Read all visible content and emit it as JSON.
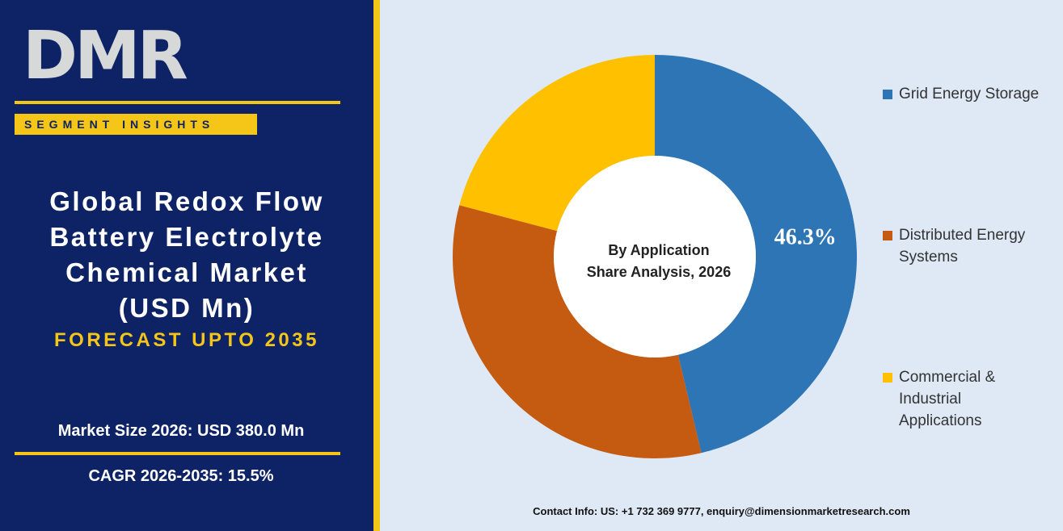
{
  "brand": {
    "logo": "DMR",
    "tag": "SEGMENT INSIGHTS"
  },
  "headline": {
    "title": [
      "Global Redox Flow",
      "Battery Electrolyte",
      "Chemical Market",
      "(USD Mn)"
    ],
    "subtitle": "FORECAST UPTO 2035"
  },
  "stats": [
    "Market Size 2026: USD 380.0 Mn",
    "CAGR 2026-2035: 15.5%"
  ],
  "contact": "Contact Info: US: +1 732 369 9777, enquiry@dimensionmarketresearch.com",
  "chart_data": {
    "type": "donut",
    "title": [
      "By Application",
      "Share Analysis, 2026"
    ],
    "categories": [
      "Grid Energy Storage",
      "Distributed Energy Systems",
      "Commercial & Industrial Applications"
    ],
    "values": [
      46.3,
      32.8,
      20.9
    ],
    "value_labels": [
      "46.3%",
      null,
      null
    ],
    "colors": [
      "#2e75b6",
      "#c55a11",
      "#ffc000"
    ],
    "legend": "right"
  }
}
